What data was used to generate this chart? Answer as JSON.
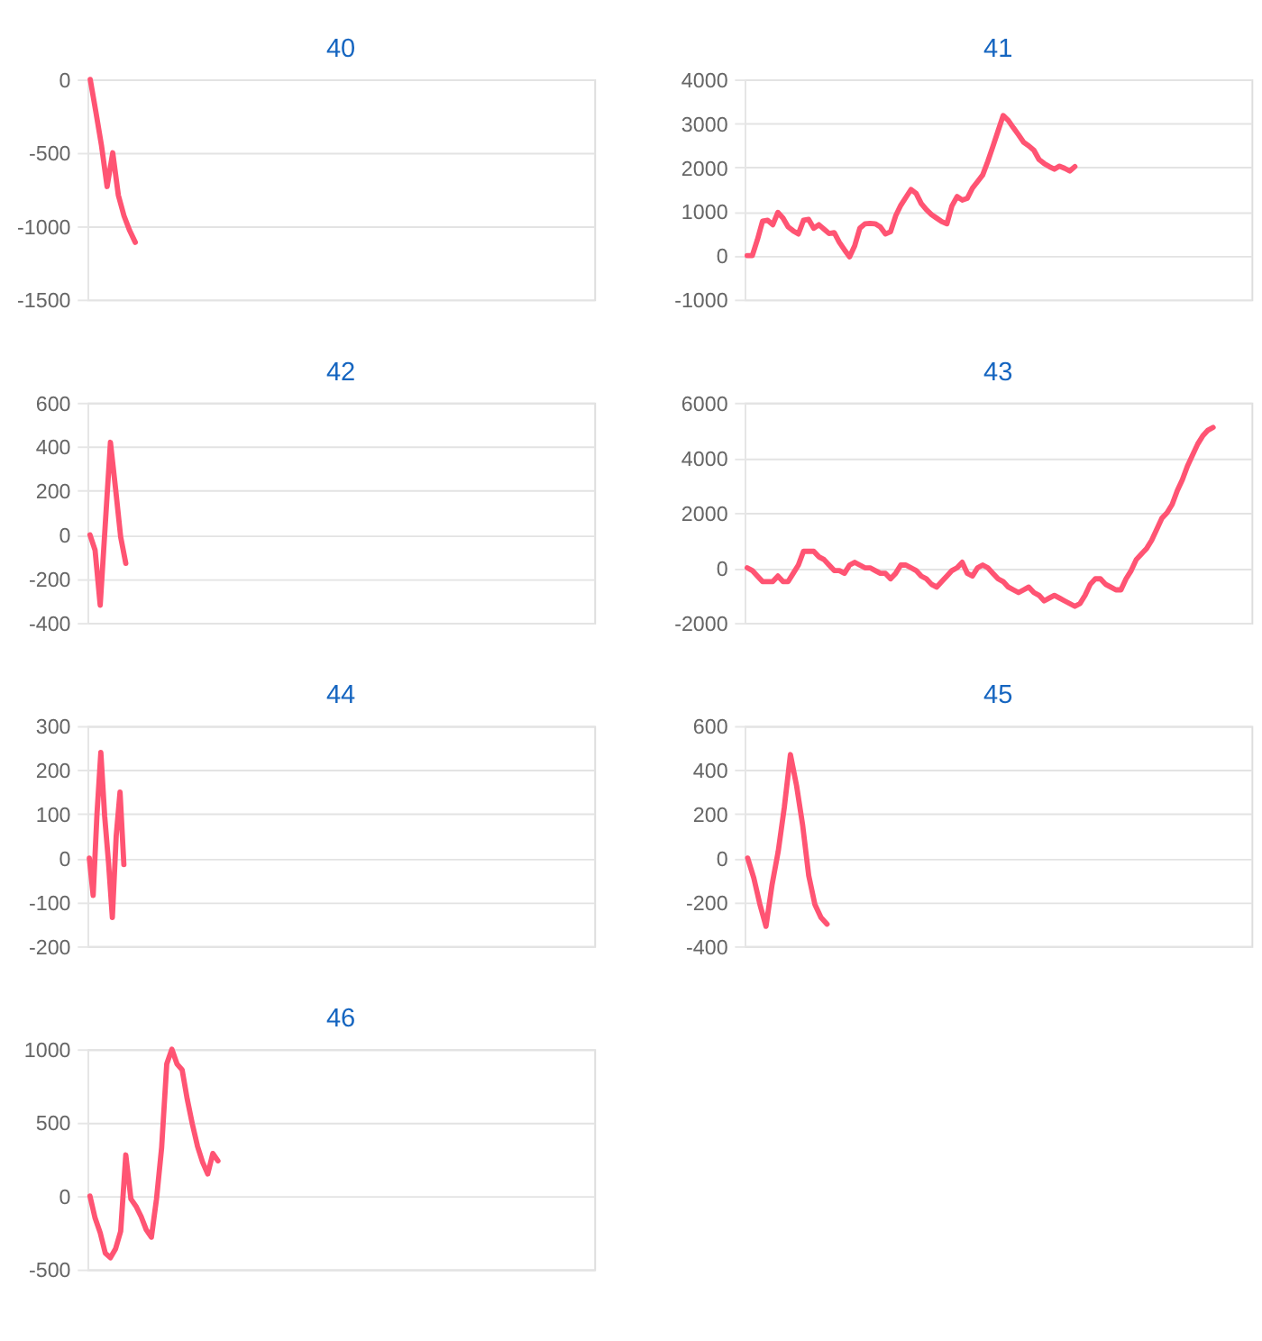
{
  "chart_data": [
    {
      "type": "line",
      "title": "40",
      "ylim": [
        -1500,
        0
      ],
      "yticks": [
        -1500,
        -1000,
        -500,
        0
      ],
      "grid": "y",
      "tick_labels": "y",
      "categories": [
        null,
        null,
        null,
        null,
        null,
        null,
        null,
        null,
        null,
        null,
        null,
        null,
        null,
        null,
        null,
        null,
        null,
        null,
        null,
        null,
        null,
        null,
        null,
        null,
        null,
        null,
        null,
        null,
        null,
        null,
        null,
        null,
        null,
        null,
        null,
        null,
        null,
        null,
        null,
        null,
        null,
        null,
        null,
        null,
        null,
        null,
        null,
        null,
        null,
        null,
        null,
        null,
        null,
        null,
        null,
        null,
        null,
        null,
        null,
        null,
        null,
        null,
        null,
        null,
        null,
        null,
        null,
        null,
        null,
        null,
        null,
        null,
        null,
        null,
        null,
        null,
        null,
        null,
        null,
        null,
        null,
        null,
        null,
        null,
        null,
        null,
        null,
        null,
        null,
        null
      ],
      "series": [
        {
          "color": "#ff5473",
          "values": [
            0,
            -220,
            -450,
            -730,
            -500,
            -790,
            -930,
            -1030,
            -1110,
            null,
            null,
            null,
            null,
            null,
            null,
            null,
            null,
            null,
            null,
            null,
            null,
            null,
            null,
            null,
            null,
            null,
            null,
            null,
            null,
            null,
            null,
            null,
            null,
            null,
            null,
            null,
            null,
            null,
            null,
            null,
            null,
            null,
            null,
            null,
            null,
            null,
            null,
            null,
            null,
            null,
            null,
            null,
            null,
            null,
            null,
            null,
            null,
            null,
            null,
            null,
            null,
            null,
            null,
            null,
            null,
            null,
            null,
            null,
            null,
            null,
            null,
            null,
            null,
            null,
            null,
            null,
            null,
            null,
            null,
            null,
            null,
            null,
            null,
            null,
            null,
            null,
            null,
            null,
            null,
            null
          ]
        }
      ]
    },
    {
      "type": "line",
      "title": "41",
      "ylim": [
        -1000,
        4000
      ],
      "yticks": [
        -1000,
        0,
        1000,
        2000,
        3000,
        4000
      ],
      "grid": "y",
      "tick_labels": "y",
      "categories": [
        null,
        null,
        null,
        null,
        null,
        null,
        null,
        null,
        null,
        null,
        null,
        null,
        null,
        null,
        null,
        null,
        null,
        null,
        null,
        null,
        null,
        null,
        null,
        null,
        null,
        null,
        null,
        null,
        null,
        null,
        null,
        null,
        null,
        null,
        null,
        null,
        null,
        null,
        null,
        null,
        null,
        null,
        null,
        null,
        null,
        null,
        null,
        null,
        null,
        null,
        null,
        null,
        null,
        null,
        null,
        null,
        null,
        null,
        null,
        null,
        null,
        null,
        null,
        null,
        null,
        null,
        null,
        null,
        null,
        null,
        null,
        null,
        null,
        null,
        null,
        null,
        null,
        null,
        null,
        null,
        null,
        null,
        null,
        null,
        null,
        null,
        null,
        null,
        null,
        null,
        null,
        null,
        null,
        null,
        null,
        null,
        null,
        null,
        null
      ],
      "series": [
        {
          "color": "#ff5473",
          "values": [
            0,
            0,
            360,
            780,
            800,
            700,
            980,
            850,
            650,
            560,
            490,
            800,
            820,
            620,
            700,
            600,
            500,
            520,
            300,
            130,
            -30,
            220,
            620,
            720,
            730,
            720,
            650,
            490,
            540,
            900,
            1140,
            1320,
            1500,
            1410,
            1180,
            1040,
            930,
            850,
            770,
            720,
            1130,
            1340,
            1260,
            1300,
            1530,
            1680,
            1830,
            2140,
            2480,
            2830,
            3180,
            3070,
            2900,
            2740,
            2570,
            2490,
            2390,
            2180,
            2090,
            2020,
            1960,
            2030,
            1980,
            1920,
            2020,
            null,
            null,
            null,
            null,
            null,
            null,
            null,
            null,
            null,
            null,
            null,
            null,
            null,
            null,
            null,
            null,
            null,
            null,
            null,
            null,
            null,
            null,
            null,
            null,
            null,
            null,
            null,
            null,
            null,
            null,
            null,
            null,
            null,
            null
          ]
        }
      ]
    },
    {
      "type": "line",
      "title": "42",
      "ylim": [
        -400,
        600
      ],
      "yticks": [
        -400,
        -200,
        0,
        200,
        400,
        600
      ],
      "grid": "y",
      "tick_labels": "y",
      "categories": [
        null,
        null,
        null,
        null,
        null,
        null,
        null,
        null,
        null,
        null,
        null,
        null,
        null,
        null,
        null,
        null,
        null,
        null,
        null,
        null,
        null,
        null,
        null,
        null,
        null,
        null,
        null,
        null,
        null,
        null,
        null,
        null,
        null,
        null,
        null,
        null,
        null,
        null,
        null,
        null,
        null,
        null,
        null,
        null,
        null,
        null,
        null,
        null,
        null,
        null,
        null,
        null,
        null,
        null,
        null,
        null,
        null,
        null,
        null,
        null,
        null,
        null,
        null,
        null,
        null,
        null,
        null,
        null,
        null,
        null,
        null,
        null,
        null,
        null,
        null,
        null,
        null,
        null,
        null,
        null,
        null,
        null,
        null,
        null,
        null,
        null,
        null,
        null,
        null,
        null,
        null,
        null,
        null,
        null,
        null,
        null,
        null,
        null,
        null
      ],
      "series": [
        {
          "color": "#ff5473",
          "values": [
            0,
            -70,
            -320,
            50,
            420,
            210,
            -10,
            -130,
            null,
            null,
            null,
            null,
            null,
            null,
            null,
            null,
            null,
            null,
            null,
            null,
            null,
            null,
            null,
            null,
            null,
            null,
            null,
            null,
            null,
            null,
            null,
            null,
            null,
            null,
            null,
            null,
            null,
            null,
            null,
            null,
            null,
            null,
            null,
            null,
            null,
            null,
            null,
            null,
            null,
            null,
            null,
            null,
            null,
            null,
            null,
            null,
            null,
            null,
            null,
            null,
            null,
            null,
            null,
            null,
            null,
            null,
            null,
            null,
            null,
            null,
            null,
            null,
            null,
            null,
            null,
            null,
            null,
            null,
            null,
            null,
            null,
            null,
            null,
            null,
            null,
            null,
            null,
            null,
            null,
            null,
            null,
            null,
            null,
            null,
            null,
            null,
            null,
            null,
            null
          ]
        }
      ]
    },
    {
      "type": "line",
      "title": "43",
      "ylim": [
        -2000,
        6000
      ],
      "yticks": [
        -2000,
        0,
        2000,
        4000,
        6000
      ],
      "grid": "y",
      "tick_labels": "y",
      "categories": [
        null,
        null,
        null,
        null,
        null,
        null,
        null,
        null,
        null,
        null,
        null,
        null,
        null,
        null,
        null,
        null,
        null,
        null,
        null,
        null,
        null,
        null,
        null,
        null,
        null,
        null,
        null,
        null,
        null,
        null,
        null,
        null,
        null,
        null,
        null,
        null,
        null,
        null,
        null,
        null,
        null,
        null,
        null,
        null,
        null,
        null,
        null,
        null,
        null,
        null,
        null,
        null,
        null,
        null,
        null,
        null,
        null,
        null,
        null,
        null,
        null,
        null,
        null,
        null,
        null,
        null,
        null,
        null,
        null,
        null,
        null,
        null,
        null,
        null,
        null,
        null,
        null,
        null,
        null,
        null,
        null,
        null,
        null,
        null,
        null,
        null,
        null,
        null,
        null,
        null,
        null,
        null,
        null,
        null,
        null,
        null,
        null,
        null,
        null
      ],
      "series": [
        {
          "color": "#ff5473",
          "values": [
            0,
            -100,
            -300,
            -500,
            -500,
            -500,
            -300,
            -500,
            -500,
            -200,
            100,
            600,
            600,
            600,
            400,
            300,
            100,
            -100,
            -100,
            -200,
            100,
            200,
            100,
            0,
            0,
            -100,
            -200,
            -200,
            -400,
            -200,
            100,
            100,
            0,
            -100,
            -300,
            -400,
            -600,
            -700,
            -500,
            -300,
            -100,
            0,
            200,
            -200,
            -300,
            0,
            100,
            0,
            -200,
            -400,
            -500,
            -700,
            -800,
            -900,
            -800,
            -700,
            -900,
            -1000,
            -1200,
            -1100,
            -1000,
            -1100,
            -1200,
            -1300,
            -1400,
            -1300,
            -1000,
            -600,
            -400,
            -400,
            -600,
            -700,
            -800,
            -800,
            -400,
            -100,
            300,
            500,
            700,
            1000,
            1400,
            1800,
            2000,
            2300,
            2800,
            3200,
            3700,
            4100,
            4500,
            4800,
            5000,
            5100,
            null,
            null,
            null,
            null,
            null,
            null,
            null
          ]
        }
      ]
    },
    {
      "type": "line",
      "title": "44",
      "ylim": [
        -200,
        300
      ],
      "yticks": [
        -200,
        -100,
        0,
        100,
        200,
        300
      ],
      "grid": "y",
      "tick_labels": "y",
      "categories": [
        null,
        null,
        null,
        null,
        null,
        null,
        null,
        null,
        null,
        null,
        null,
        null,
        null,
        null,
        null,
        null,
        null,
        null,
        null,
        null,
        null,
        null,
        null,
        null,
        null,
        null,
        null,
        null,
        null,
        null,
        null,
        null,
        null,
        null,
        null,
        null,
        null,
        null,
        null,
        null,
        null,
        null,
        null,
        null,
        null,
        null,
        null,
        null,
        null,
        null,
        null,
        null,
        null,
        null,
        null,
        null,
        null,
        null,
        null,
        null,
        null,
        null,
        null,
        null,
        null,
        null,
        null,
        null,
        null,
        null,
        null,
        null,
        null,
        null,
        null,
        null,
        null,
        null,
        null,
        null,
        null,
        null,
        null,
        null,
        null,
        null,
        null,
        null,
        null,
        null,
        null,
        null,
        null,
        null,
        null,
        null,
        null,
        null,
        null,
        null,
        null,
        null,
        null,
        null,
        null,
        null,
        null,
        null,
        null,
        null,
        null,
        null,
        null,
        null,
        null,
        null,
        null,
        null,
        null,
        null,
        null,
        null,
        null,
        null,
        null,
        null,
        null,
        null,
        null,
        null,
        null,
        null
      ],
      "series": [
        {
          "color": "#ff5473",
          "values": [
            0,
            -85,
            100,
            240,
            95,
            -10,
            -135,
            50,
            150,
            -15,
            null,
            null,
            null,
            null,
            null,
            null,
            null,
            null,
            null,
            null,
            null,
            null,
            null,
            null,
            null,
            null,
            null,
            null,
            null,
            null,
            null,
            null,
            null,
            null,
            null,
            null,
            null,
            null,
            null,
            null,
            null,
            null,
            null,
            null,
            null,
            null,
            null,
            null,
            null,
            null,
            null,
            null,
            null,
            null,
            null,
            null,
            null,
            null,
            null,
            null,
            null,
            null,
            null,
            null,
            null,
            null,
            null,
            null,
            null,
            null,
            null,
            null,
            null,
            null,
            null,
            null,
            null,
            null,
            null,
            null,
            null,
            null,
            null,
            null,
            null,
            null,
            null,
            null,
            null,
            null,
            null,
            null,
            null,
            null,
            null,
            null,
            null,
            null,
            null,
            null,
            null,
            null,
            null,
            null,
            null,
            null,
            null,
            null,
            null,
            null,
            null,
            null,
            null,
            null,
            null,
            null,
            null,
            null,
            null,
            null,
            null,
            null,
            null,
            null,
            null,
            null,
            null,
            null,
            null,
            null,
            null,
            null
          ]
        }
      ]
    },
    {
      "type": "line",
      "title": "45",
      "ylim": [
        -400,
        600
      ],
      "yticks": [
        -400,
        -200,
        0,
        200,
        400,
        600
      ],
      "grid": "y",
      "tick_labels": "y",
      "categories": [
        null,
        null,
        null,
        null,
        null,
        null,
        null,
        null,
        null,
        null,
        null,
        null,
        null,
        null,
        null,
        null,
        null,
        null,
        null,
        null,
        null,
        null,
        null,
        null,
        null,
        null,
        null,
        null,
        null,
        null,
        null,
        null,
        null,
        null,
        null,
        null,
        null,
        null,
        null,
        null,
        null,
        null,
        null,
        null,
        null,
        null,
        null,
        null,
        null,
        null,
        null,
        null,
        null,
        null,
        null,
        null,
        null,
        null,
        null,
        null,
        null,
        null,
        null,
        null,
        null,
        null,
        null,
        null,
        null,
        null,
        null,
        null,
        null,
        null,
        null,
        null,
        null,
        null,
        null,
        null,
        null,
        null,
        null
      ],
      "series": [
        {
          "color": "#ff5473",
          "values": [
            0,
            -90,
            -210,
            -310,
            -120,
            30,
            230,
            470,
            330,
            150,
            -80,
            -210,
            -270,
            -300,
            null,
            null,
            null,
            null,
            null,
            null,
            null,
            null,
            null,
            null,
            null,
            null,
            null,
            null,
            null,
            null,
            null,
            null,
            null,
            null,
            null,
            null,
            null,
            null,
            null,
            null,
            null,
            null,
            null,
            null,
            null,
            null,
            null,
            null,
            null,
            null,
            null,
            null,
            null,
            null,
            null,
            null,
            null,
            null,
            null,
            null,
            null,
            null,
            null,
            null,
            null,
            null,
            null,
            null,
            null,
            null,
            null,
            null,
            null,
            null,
            null,
            null,
            null,
            null,
            null,
            null,
            null,
            null,
            null
          ]
        }
      ]
    },
    {
      "type": "line",
      "title": "46",
      "ylim": [
        -500,
        1000
      ],
      "yticks": [
        -500,
        0,
        500,
        1000
      ],
      "grid": "y",
      "tick_labels": "y",
      "categories": [
        null,
        null,
        null,
        null,
        null,
        null,
        null,
        null,
        null,
        null,
        null,
        null,
        null,
        null,
        null,
        null,
        null,
        null,
        null,
        null,
        null,
        null,
        null,
        null,
        null,
        null,
        null,
        null,
        null,
        null,
        null,
        null,
        null,
        null,
        null,
        null,
        null,
        null,
        null,
        null,
        null,
        null,
        null,
        null,
        null,
        null,
        null,
        null,
        null,
        null,
        null,
        null,
        null,
        null,
        null,
        null,
        null,
        null,
        null,
        null,
        null,
        null,
        null,
        null,
        null,
        null,
        null,
        null,
        null,
        null,
        null,
        null,
        null,
        null,
        null,
        null,
        null,
        null,
        null,
        null,
        null,
        null,
        null,
        null,
        null,
        null,
        null,
        null,
        null,
        null,
        null,
        null,
        null,
        null,
        null,
        null,
        null,
        null,
        null
      ],
      "series": [
        {
          "color": "#ff5473",
          "values": [
            0,
            -150,
            -250,
            -390,
            -420,
            -360,
            -240,
            280,
            -20,
            -70,
            -140,
            -230,
            -280,
            -20,
            330,
            900,
            1000,
            900,
            860,
            660,
            490,
            340,
            230,
            150,
            290,
            240,
            null,
            null,
            null,
            null,
            null,
            null,
            null,
            null,
            null,
            null,
            null,
            null,
            null,
            null,
            null,
            null,
            null,
            null,
            null,
            null,
            null,
            null,
            null,
            null,
            null,
            null,
            null,
            null,
            null,
            null,
            null,
            null,
            null,
            null,
            null,
            null,
            null,
            null,
            null,
            null,
            null,
            null,
            null,
            null,
            null,
            null,
            null,
            null,
            null,
            null,
            null,
            null,
            null,
            null,
            null,
            null,
            null,
            null,
            null,
            null,
            null,
            null,
            null,
            null,
            null,
            null,
            null,
            null,
            null,
            null,
            null,
            null,
            null
          ]
        }
      ]
    }
  ]
}
